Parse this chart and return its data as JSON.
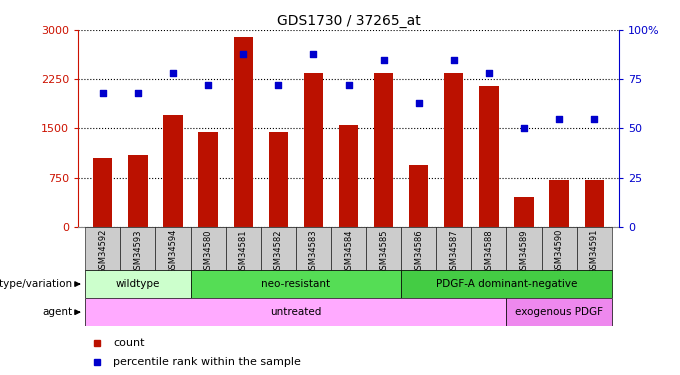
{
  "title": "GDS1730 / 37265_at",
  "samples": [
    "GSM34592",
    "GSM34593",
    "GSM34594",
    "GSM34580",
    "GSM34581",
    "GSM34582",
    "GSM34583",
    "GSM34584",
    "GSM34585",
    "GSM34586",
    "GSM34587",
    "GSM34588",
    "GSM34589",
    "GSM34590",
    "GSM34591"
  ],
  "counts": [
    1050,
    1100,
    1700,
    1450,
    2900,
    1450,
    2350,
    1550,
    2350,
    950,
    2350,
    2150,
    450,
    720,
    720
  ],
  "percentiles": [
    68,
    68,
    78,
    72,
    88,
    72,
    88,
    72,
    85,
    63,
    85,
    78,
    50,
    55,
    55
  ],
  "bar_color": "#bb1100",
  "dot_color": "#0000cc",
  "ylim_left": [
    0,
    3000
  ],
  "ylim_right": [
    0,
    100
  ],
  "yticks_left": [
    0,
    750,
    1500,
    2250,
    3000
  ],
  "yticks_right": [
    0,
    25,
    50,
    75,
    100
  ],
  "ytick_right_labels": [
    "0",
    "25",
    "50",
    "75",
    "100%"
  ],
  "genotype_groups": [
    {
      "label": "wildtype",
      "start": 0,
      "end": 3,
      "color": "#ccffcc"
    },
    {
      "label": "neo-resistant",
      "start": 3,
      "end": 9,
      "color": "#55dd55"
    },
    {
      "label": "PDGF-A dominant-negative",
      "start": 9,
      "end": 15,
      "color": "#44cc44"
    }
  ],
  "agent_groups": [
    {
      "label": "untreated",
      "start": 0,
      "end": 12,
      "color": "#ffaaff"
    },
    {
      "label": "exogenous PDGF",
      "start": 12,
      "end": 15,
      "color": "#ee88ee"
    }
  ],
  "genotype_label": "genotype/variation",
  "agent_label": "agent",
  "legend_count": "count",
  "legend_percentile": "percentile rank within the sample",
  "bg_color": "#ffffff",
  "tick_bg_color": "#cccccc",
  "left_axis_color": "#cc1100",
  "right_axis_color": "#0000cc"
}
